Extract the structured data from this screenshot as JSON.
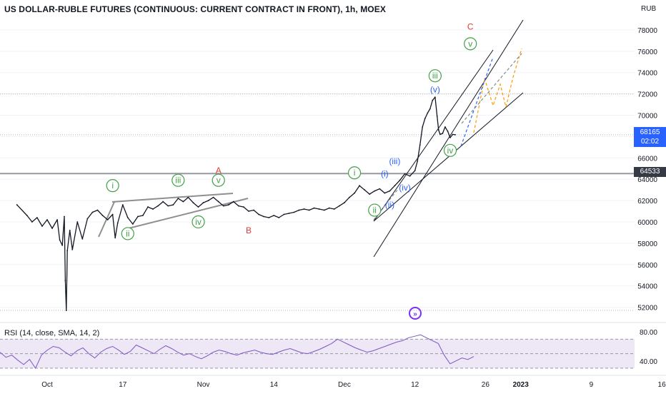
{
  "chart_title": "US DOLLAR-RUBLE FUTURES (CONTINUOUS: CURRENT CONTRACT IN FRONT), 1h, MOEX",
  "price_unit": "RUB",
  "current_price": "68165",
  "countdown": "02:02",
  "level_price": "64533",
  "indicator_label": "RSI (14, close, SMA, 14, 2)",
  "colors": {
    "price": "#131722",
    "channel": "#131722",
    "wave_green": "#43a047",
    "wave_blue": "#2962ff",
    "wave_red": "#e53935",
    "projection_orange": "#ff9800",
    "projection_blue": "#2962ff",
    "rsi_line": "#7e57c2",
    "rsi_band": "#ede7f6",
    "current_price_box": "#2962ff",
    "level_line": "#9598a1"
  },
  "icons": [
    "events-icon"
  ],
  "chart_data": [
    {
      "type": "line",
      "subtype": "candlestick-hourly",
      "title": "US DOLLAR-RUBLE FUTURES (CONTINUOUS: CURRENT CONTRACT IN FRONT), 1h, MOEX",
      "ylabel": "RUB",
      "ylim": [
        50700,
        79600
      ],
      "yticks": [
        52000,
        54000,
        56000,
        58000,
        60000,
        62000,
        64000,
        66000,
        68000,
        70000,
        72000,
        74000,
        76000,
        78000
      ],
      "xticks": [
        "Oct",
        "17",
        "Nov",
        "14",
        "Dec",
        "12",
        "26",
        "2023",
        "9",
        "16"
      ],
      "x_tick_index": [
        0,
        15,
        31,
        45,
        59,
        73,
        87,
        94,
        108,
        122
      ],
      "x_unit": "day index from start of October 2022",
      "grid": true,
      "series": [
        {
          "points": [
            [
              -6,
              61600
            ],
            [
              -4,
              60600
            ],
            [
              -3,
              60000
            ],
            [
              -2,
              60400
            ],
            [
              -1,
              59600
            ],
            [
              0,
              60200
            ],
            [
              1,
              59400
            ],
            [
              2,
              60200
            ],
            [
              2.5,
              58300
            ],
            [
              3,
              57800
            ],
            [
              3.4,
              60500
            ],
            [
              3.6,
              54500
            ],
            [
              3.8,
              51700
            ],
            [
              4,
              57300
            ],
            [
              4.5,
              59200
            ],
            [
              5,
              57400
            ],
            [
              6,
              60000
            ],
            [
              7,
              58400
            ],
            [
              8,
              60300
            ],
            [
              9,
              60900
            ],
            [
              10,
              61100
            ],
            [
              11,
              60600
            ],
            [
              12,
              60200
            ],
            [
              13,
              60700
            ],
            [
              13.5,
              58500
            ],
            [
              14,
              59900
            ],
            [
              15,
              61600
            ],
            [
              16,
              60400
            ],
            [
              17,
              59800
            ],
            [
              18,
              60500
            ],
            [
              19,
              60600
            ],
            [
              20,
              61400
            ],
            [
              21,
              61200
            ],
            [
              22,
              61500
            ],
            [
              23,
              61900
            ],
            [
              24,
              61500
            ],
            [
              25,
              61600
            ],
            [
              26,
              62200
            ],
            [
              27,
              61900
            ],
            [
              28,
              62300
            ],
            [
              29,
              61800
            ],
            [
              30,
              61400
            ],
            [
              31,
              61800
            ],
            [
              32,
              62000
            ],
            [
              33,
              62300
            ],
            [
              34,
              61900
            ],
            [
              35,
              61500
            ],
            [
              36,
              61600
            ],
            [
              37,
              61900
            ],
            [
              38,
              61500
            ],
            [
              39,
              61400
            ],
            [
              40,
              61000
            ],
            [
              41,
              61100
            ],
            [
              42,
              60700
            ],
            [
              43,
              60500
            ],
            [
              44,
              60400
            ],
            [
              45,
              60600
            ],
            [
              46,
              60400
            ],
            [
              47,
              60700
            ],
            [
              48,
              60800
            ],
            [
              49,
              60900
            ],
            [
              50,
              61100
            ],
            [
              51,
              61200
            ],
            [
              52,
              61100
            ],
            [
              53,
              61300
            ],
            [
              54,
              61200
            ],
            [
              55,
              61100
            ],
            [
              56,
              61300
            ],
            [
              57,
              61200
            ],
            [
              58,
              61500
            ],
            [
              59,
              61800
            ],
            [
              60,
              62300
            ],
            [
              61,
              62700
            ],
            [
              62,
              63400
            ],
            [
              63,
              63000
            ],
            [
              64,
              62600
            ],
            [
              65,
              62900
            ],
            [
              66,
              63100
            ],
            [
              67,
              62700
            ],
            [
              68,
              62900
            ],
            [
              69,
              63400
            ],
            [
              70,
              63900
            ],
            [
              71,
              64500
            ],
            [
              72,
              64300
            ],
            [
              73,
              64800
            ],
            [
              73.5,
              65700
            ],
            [
              74,
              67200
            ],
            [
              74.5,
              68900
            ],
            [
              75,
              69700
            ],
            [
              75.5,
              70200
            ],
            [
              76,
              70600
            ],
            [
              76.5,
              71400
            ],
            [
              77,
              71700
            ],
            [
              77.4,
              69900
            ],
            [
              77.7,
              68600
            ],
            [
              78,
              68200
            ],
            [
              78.5,
              68300
            ],
            [
              79,
              68900
            ],
            [
              79.5,
              68500
            ],
            [
              80,
              67900
            ],
            [
              80.5,
              68200
            ],
            [
              81,
              68165
            ]
          ]
        }
      ],
      "annotations": [
        {
          "text": "i",
          "x": 13,
          "y": 63400,
          "style": "circle",
          "color": "#43a047"
        },
        {
          "text": "ii",
          "x": 16,
          "y": 58900,
          "style": "circle",
          "color": "#43a047"
        },
        {
          "text": "iii",
          "x": 26,
          "y": 63900,
          "style": "circle",
          "color": "#43a047"
        },
        {
          "text": "iv",
          "x": 30,
          "y": 60000,
          "style": "circle",
          "color": "#43a047"
        },
        {
          "text": "v",
          "x": 34,
          "y": 63900,
          "style": "circle",
          "color": "#43a047"
        },
        {
          "text": "A",
          "x": 34,
          "y": 64800,
          "style": "plain",
          "color": "#e53935"
        },
        {
          "text": "B",
          "x": 40,
          "y": 59200,
          "style": "plain",
          "color": "#e53935"
        },
        {
          "text": "i",
          "x": 61,
          "y": 64600,
          "style": "circle",
          "color": "#43a047"
        },
        {
          "text": "ii",
          "x": 65,
          "y": 61100,
          "style": "circle",
          "color": "#43a047"
        },
        {
          "text": "iii",
          "x": 77,
          "y": 73700,
          "style": "circle",
          "color": "#43a047"
        },
        {
          "text": "iv",
          "x": 80,
          "y": 66700,
          "style": "circle",
          "color": "#43a047"
        },
        {
          "text": "v",
          "x": 84,
          "y": 76700,
          "style": "circle",
          "color": "#43a047"
        },
        {
          "text": "C",
          "x": 84,
          "y": 78300,
          "style": "plain",
          "color": "#e53935"
        },
        {
          "text": "(i)",
          "x": 67,
          "y": 64500,
          "style": "plain",
          "color": "#2962ff"
        },
        {
          "text": "(ii)",
          "x": 68,
          "y": 61600,
          "style": "plain",
          "color": "#2962ff"
        },
        {
          "text": "(iii)",
          "x": 69,
          "y": 65700,
          "style": "plain",
          "color": "#2962ff"
        },
        {
          "text": "(iv)",
          "x": 71,
          "y": 63200,
          "style": "plain",
          "color": "#2962ff"
        },
        {
          "text": "(v)",
          "x": 77,
          "y": 72400,
          "style": "plain",
          "color": "#2962ff"
        }
      ],
      "horizontal_levels": [
        72000,
        68165,
        64533,
        51700
      ]
    },
    {
      "type": "line",
      "title": "RSI (14, close, SMA, 14, 2)",
      "ylim": [
        28,
        90
      ],
      "yticks": [
        40.0,
        80.0
      ],
      "band": [
        30,
        70
      ],
      "series": [
        {
          "name": "RSI",
          "values": [
            52,
            45,
            48,
            41,
            35,
            42,
            30,
            48,
            55,
            60,
            58,
            52,
            47,
            54,
            58,
            50,
            44,
            52,
            57,
            60,
            55,
            49,
            53,
            62,
            58,
            54,
            50,
            56,
            61,
            57,
            52,
            48,
            50,
            46,
            43,
            47,
            52,
            55,
            53,
            50,
            48,
            51,
            53,
            55,
            52,
            50,
            49,
            52,
            55,
            57,
            54,
            51,
            50,
            53,
            56,
            60,
            64,
            70,
            66,
            62,
            58,
            55,
            52,
            54,
            57,
            60,
            63,
            66,
            68,
            72,
            74,
            76,
            72,
            68,
            64,
            48,
            36,
            40,
            44,
            42,
            46
          ]
        }
      ]
    }
  ]
}
